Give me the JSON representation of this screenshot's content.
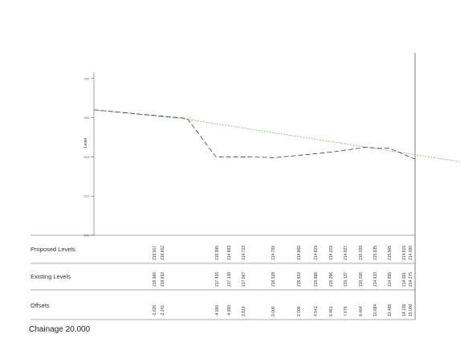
{
  "plot": {
    "y_axis_label": "Level",
    "y_tick_labels": [
      "225",
      "220",
      "215",
      "210",
      "205"
    ],
    "colors": {
      "proposed_line": "#66bb55",
      "existing_line": "#222222",
      "grid": "#555555",
      "text": "#333333"
    }
  },
  "chart_data": {
    "type": "line",
    "ylabel": "Level",
    "ylim": [
      205,
      226
    ],
    "xlim": [
      -9.5,
      15.5
    ],
    "series": [
      {
        "role": "proposed",
        "x": [
          -9.5,
          -2.241,
          20.5
        ],
        "y": [
          221.0,
          219.8,
          214.0
        ]
      },
      {
        "role": "existing",
        "x": [
          -9.5,
          -2.241,
          0.0,
          2.5,
          4.5,
          6.5,
          9.0,
          11.5,
          13.5,
          15.5
        ],
        "y": [
          221.0,
          219.9,
          215.0,
          215.0,
          214.9,
          215.2,
          215.6,
          216.2,
          216.1,
          214.7
        ]
      }
    ]
  },
  "table": {
    "rows": [
      {
        "label": "Proposed Levels",
        "values": [
          "219.917",
          "219.652",
          "215.995",
          "214.893",
          "214.723",
          "214.759",
          "214.860",
          "214.829",
          "214.919",
          "214.927",
          "215.039",
          "215.835",
          "215.905",
          "214.815",
          "214.000"
        ]
      },
      {
        "label": "Existing Levels",
        "values": [
          "219.966",
          "219.692",
          "217.426",
          "217.138",
          "217.067",
          "216.528",
          "215.532",
          "215.888",
          "215.356",
          "215.137",
          "215.036",
          "214.633",
          "214.595",
          "214.391",
          "214.275"
        ]
      },
      {
        "label": "Offsets",
        "values": [
          "-2.626",
          "-2.241",
          "-4.660",
          "-4.660",
          "2.810",
          "0.000",
          "2.000",
          "4.541",
          "6.461",
          "7.676",
          "8.464",
          "10.684",
          "12.495",
          "14.135",
          "15.000"
        ]
      }
    ],
    "col_positions_note": ""
  },
  "footer": {
    "chainage": "Chainage 20.000"
  }
}
